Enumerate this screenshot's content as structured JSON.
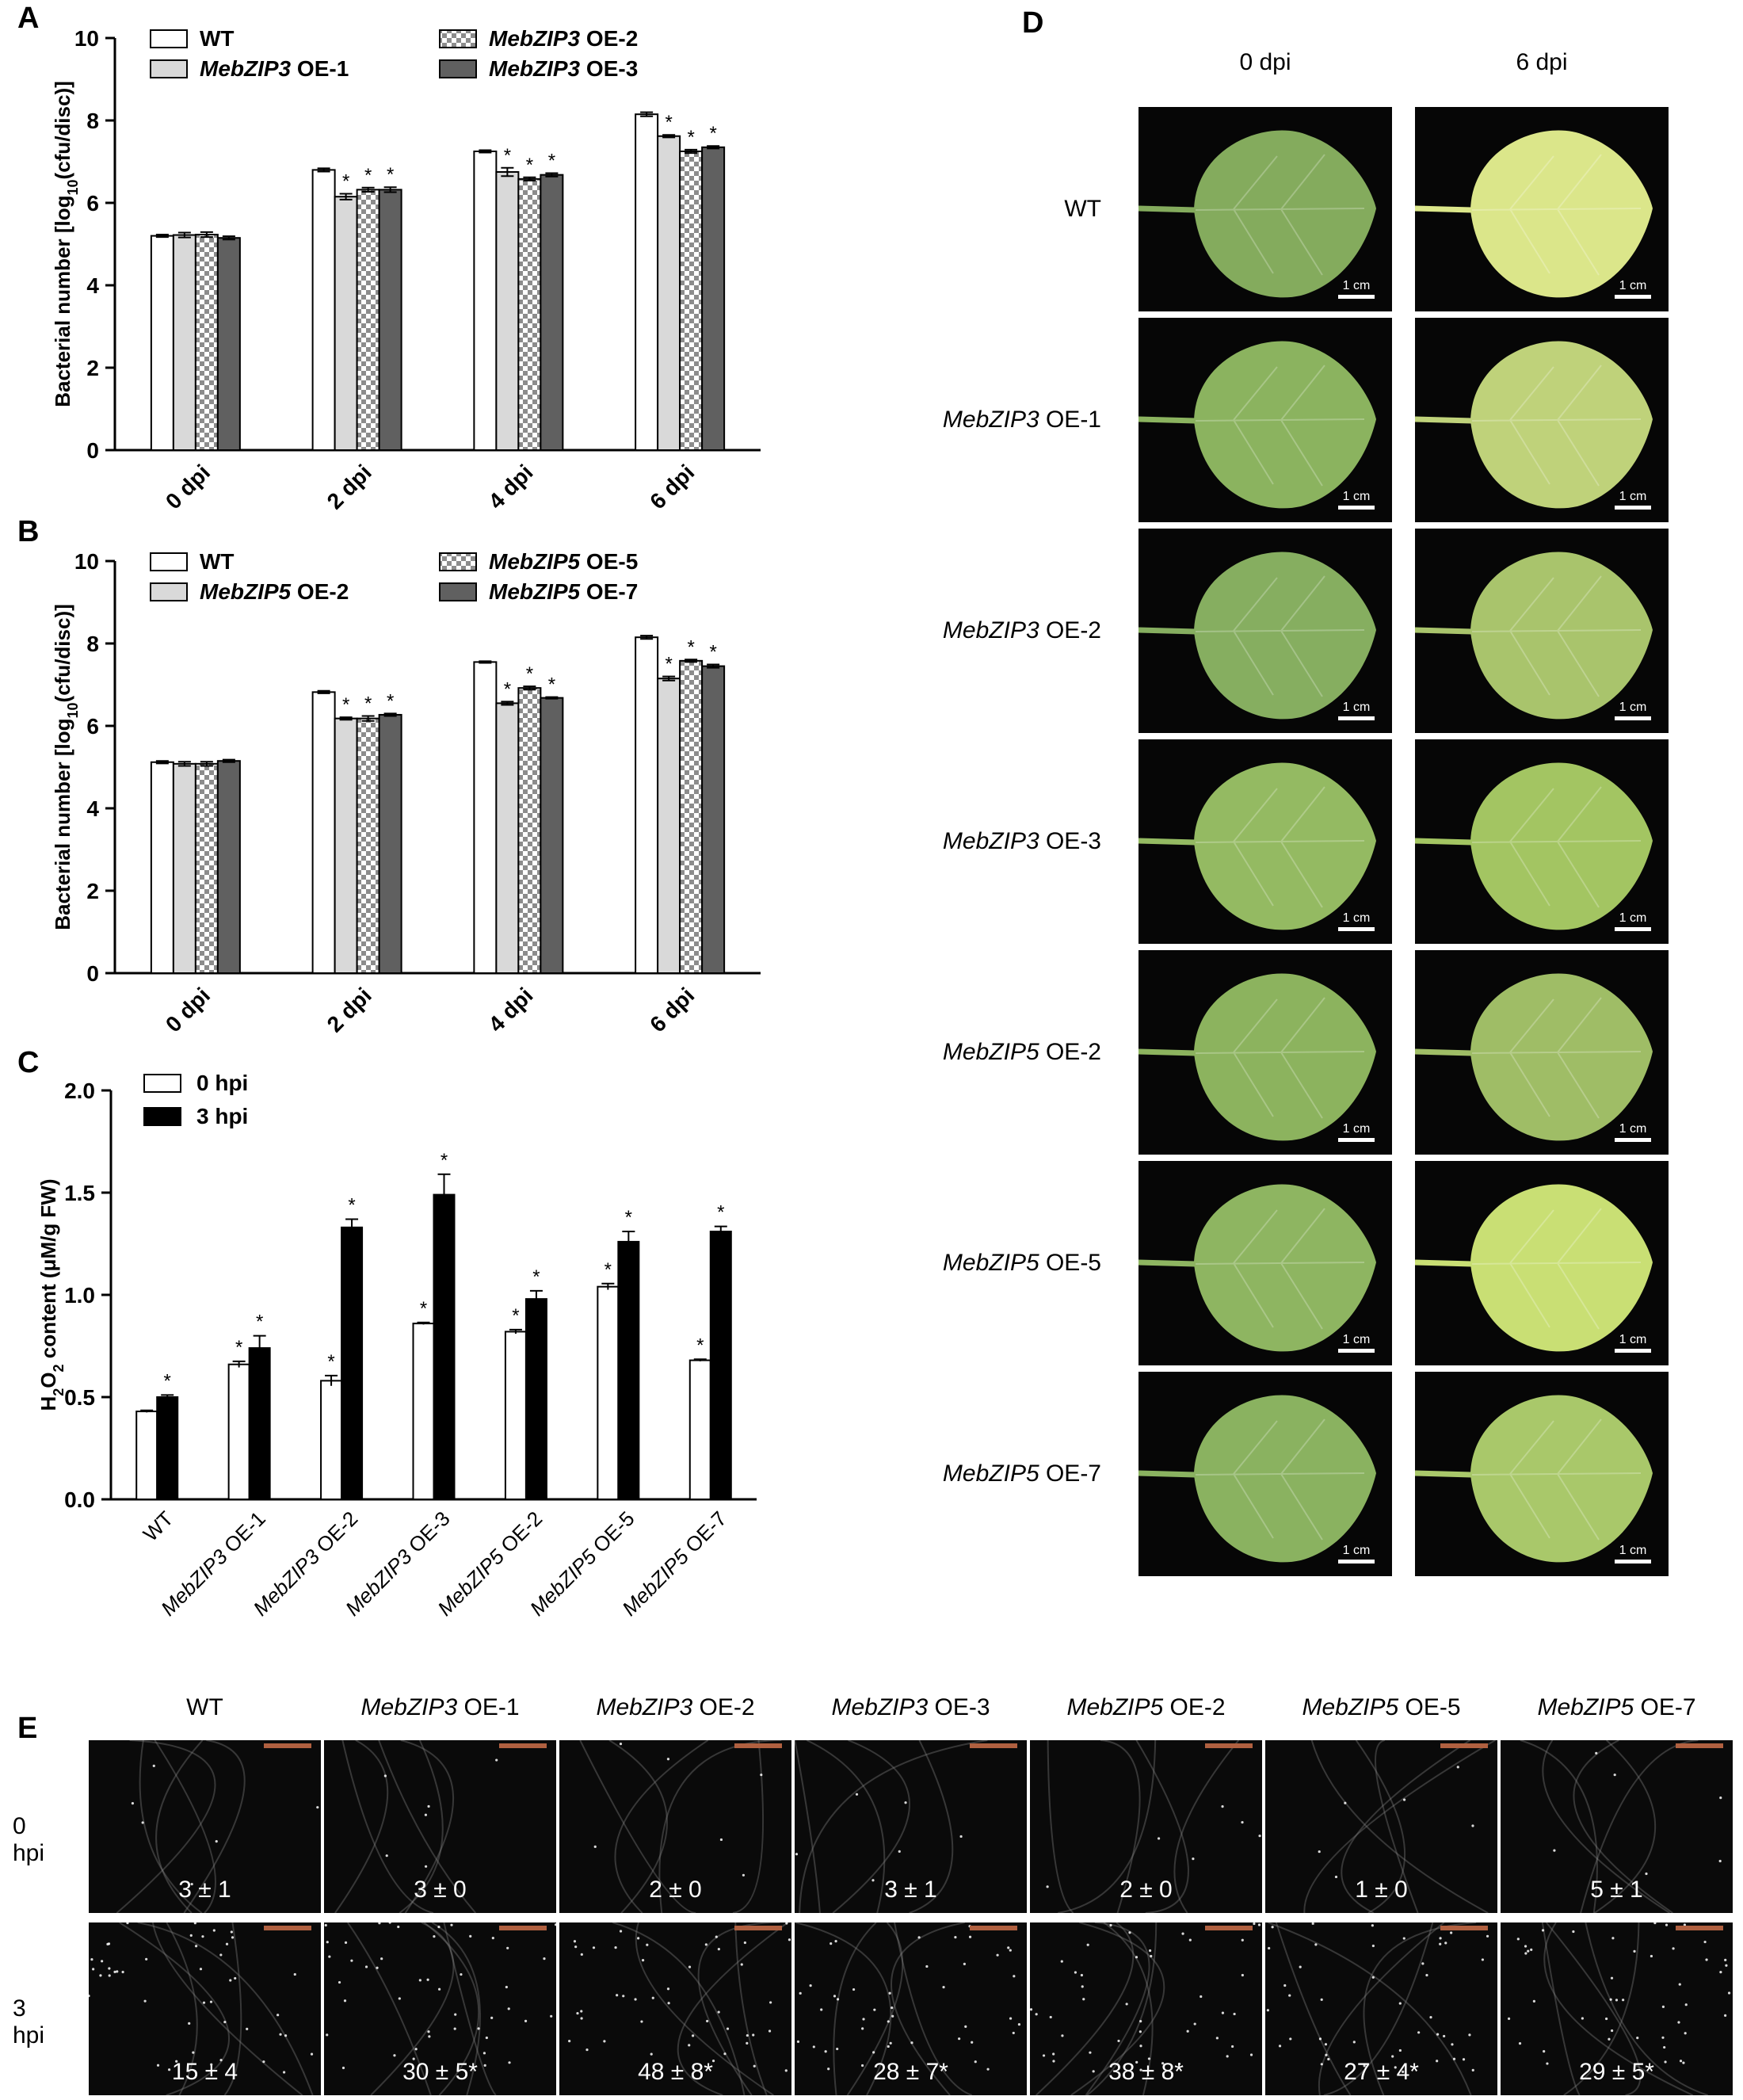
{
  "panels": {
    "A": "A",
    "B": "B",
    "C": "C",
    "D": "D",
    "E": "E"
  },
  "chart_data": [
    {
      "panel": "A",
      "type": "bar",
      "ylabel": "Bacterial number [log10(cfu/disc)]",
      "ylabel_parts": {
        "pre": "Bacterial number [log",
        "sub": "10",
        "post": "(cfu/disc)]"
      },
      "ylim": [
        0,
        10
      ],
      "yticks": [
        "0",
        "2",
        "4",
        "6",
        "8",
        "10"
      ],
      "categories": [
        "0 dpi",
        "2 dpi",
        "4 dpi",
        "6 dpi"
      ],
      "legend": [
        {
          "gene": "",
          "suffix": "WT"
        },
        {
          "gene": "MebZIP3",
          "suffix": " OE-1"
        },
        {
          "gene": "MebZIP3",
          "suffix": " OE-2"
        },
        {
          "gene": "MebZIP3",
          "suffix": " OE-3"
        }
      ],
      "series": [
        {
          "values": [
            5.2,
            6.8,
            7.25,
            8.15
          ],
          "err": [
            0.03,
            0.04,
            0.03,
            0.05
          ],
          "sig": [
            "",
            "",
            "",
            ""
          ]
        },
        {
          "values": [
            5.22,
            6.15,
            6.75,
            7.62
          ],
          "err": [
            0.06,
            0.07,
            0.1,
            0.03
          ],
          "sig": [
            "",
            "*",
            "*",
            "*"
          ]
        },
        {
          "values": [
            5.23,
            6.32,
            6.58,
            7.25
          ],
          "err": [
            0.06,
            0.05,
            0.04,
            0.04
          ],
          "sig": [
            "",
            "*",
            "*",
            "*"
          ]
        },
        {
          "values": [
            5.15,
            6.32,
            6.68,
            7.35
          ],
          "err": [
            0.04,
            0.06,
            0.04,
            0.03
          ],
          "sig": [
            "",
            "*",
            "*",
            "*"
          ]
        }
      ]
    },
    {
      "panel": "B",
      "type": "bar",
      "ylabel": "Bacterial number [log10(cfu/disc)]",
      "ylabel_parts": {
        "pre": "Bacterial number [log",
        "sub": "10",
        "post": "(cfu/disc)]"
      },
      "ylim": [
        0,
        10
      ],
      "yticks": [
        "0",
        "2",
        "4",
        "6",
        "8",
        "10"
      ],
      "categories": [
        "0 dpi",
        "2 dpi",
        "4 dpi",
        "6 dpi"
      ],
      "legend": [
        {
          "gene": "",
          "suffix": "WT"
        },
        {
          "gene": "MebZIP5",
          "suffix": " OE-2"
        },
        {
          "gene": "MebZIP5",
          "suffix": " OE-5"
        },
        {
          "gene": "MebZIP5",
          "suffix": " OE-7"
        }
      ],
      "series": [
        {
          "values": [
            5.12,
            6.82,
            7.55,
            8.15
          ],
          "err": [
            0.03,
            0.03,
            0.02,
            0.04
          ],
          "sig": [
            "",
            "",
            "",
            ""
          ]
        },
        {
          "values": [
            5.08,
            6.18,
            6.55,
            7.15
          ],
          "err": [
            0.05,
            0.03,
            0.04,
            0.05
          ],
          "sig": [
            "",
            "*",
            "*",
            "*"
          ]
        },
        {
          "values": [
            5.08,
            6.18,
            6.92,
            7.58
          ],
          "err": [
            0.05,
            0.06,
            0.04,
            0.03
          ],
          "sig": [
            "",
            "*",
            "*",
            "*"
          ]
        },
        {
          "values": [
            5.15,
            6.27,
            6.68,
            7.45
          ],
          "err": [
            0.03,
            0.03,
            0.02,
            0.04
          ],
          "sig": [
            "",
            "*",
            "*",
            "*"
          ]
        }
      ]
    },
    {
      "panel": "C",
      "type": "bar",
      "ylabel": "H2O2 content (μM/g FW)",
      "ylabel_parts": {
        "pre": "H",
        "sub": "2",
        "mid": "O",
        "sub2": "2",
        "post": " content (μM/g FW)"
      },
      "ylim": [
        0,
        2.0
      ],
      "yticks": [
        "0.0",
        "0.5",
        "1.0",
        "1.5",
        "2.0"
      ],
      "categories": [
        {
          "gene": "",
          "suffix": "WT"
        },
        {
          "gene": "MebZIP3",
          "suffix": " OE-1"
        },
        {
          "gene": "MebZIP3",
          "suffix": " OE-2"
        },
        {
          "gene": "MebZIP3",
          "suffix": " OE-3"
        },
        {
          "gene": "MebZIP5",
          "suffix": " OE-2"
        },
        {
          "gene": "MebZIP5",
          "suffix": " OE-5"
        },
        {
          "gene": "MebZIP5",
          "suffix": " OE-7"
        }
      ],
      "legend": [
        "0 hpi",
        "3 hpi"
      ],
      "series": [
        {
          "values": [
            0.43,
            0.66,
            0.58,
            0.86,
            0.82,
            1.04,
            0.68
          ],
          "err": [
            0.005,
            0.015,
            0.025,
            0.005,
            0.01,
            0.015,
            0.005
          ],
          "sig": [
            "",
            "*",
            "*",
            "*",
            "*",
            "*",
            "*"
          ]
        },
        {
          "values": [
            0.5,
            0.74,
            1.33,
            1.49,
            0.98,
            1.26,
            1.31
          ],
          "err": [
            0.01,
            0.06,
            0.04,
            0.1,
            0.04,
            0.05,
            0.025
          ],
          "sig": [
            "*",
            "*",
            "*",
            "*",
            "*",
            "*",
            "*"
          ]
        }
      ]
    }
  ],
  "panelD": {
    "columns": [
      "0 dpi",
      "6 dpi"
    ],
    "scale": "1 cm",
    "rows": [
      {
        "gene": "",
        "suffix": "WT",
        "tone0": "#84ab5d",
        "tone6": "#dbe68a"
      },
      {
        "gene": "MebZIP3",
        "suffix": " OE-1",
        "tone0": "#8bb35f",
        "tone6": "#bfd27a"
      },
      {
        "gene": "MebZIP3",
        "suffix": " OE-2",
        "tone0": "#86ae60",
        "tone6": "#a9c46c"
      },
      {
        "gene": "MebZIP3",
        "suffix": " OE-3",
        "tone0": "#94ba62",
        "tone6": "#a3c562"
      },
      {
        "gene": "MebZIP5",
        "suffix": " OE-2",
        "tone0": "#8cb35e",
        "tone6": "#9fbd66"
      },
      {
        "gene": "MebZIP5",
        "suffix": " OE-5",
        "tone0": "#8eb561",
        "tone6": "#c9df74"
      },
      {
        "gene": "MebZIP5",
        "suffix": " OE-7",
        "tone0": "#8ab260",
        "tone6": "#a9c86a"
      }
    ]
  },
  "panelE": {
    "columns": [
      {
        "gene": "",
        "suffix": "WT"
      },
      {
        "gene": "MebZIP3",
        "suffix": " OE-1"
      },
      {
        "gene": "MebZIP3",
        "suffix": " OE-2"
      },
      {
        "gene": "MebZIP3",
        "suffix": " OE-3"
      },
      {
        "gene": "MebZIP5",
        "suffix": " OE-2"
      },
      {
        "gene": "MebZIP5",
        "suffix": " OE-5"
      },
      {
        "gene": "MebZIP5",
        "suffix": " OE-7"
      }
    ],
    "rows": [
      {
        "label": "0 hpi",
        "counts": [
          "3 ± 1",
          "3 ± 0",
          "2 ± 0",
          "3 ± 1",
          "2 ± 0",
          "1 ± 0",
          "5 ± 1"
        ]
      },
      {
        "label": "3 hpi",
        "counts": [
          "15 ± 4",
          "30 ± 5*",
          "48 ± 8*",
          "28 ± 7*",
          "38 ± 8*",
          "27 ± 4*",
          "29 ± 5*"
        ]
      }
    ]
  }
}
